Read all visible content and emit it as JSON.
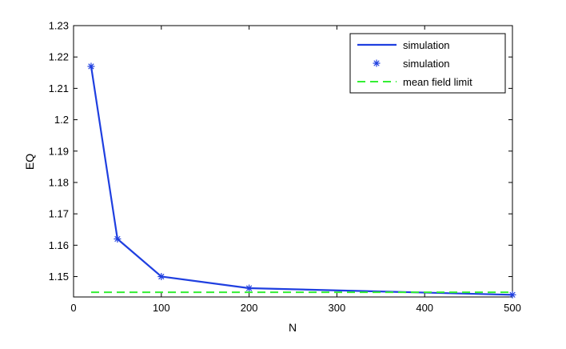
{
  "chart_data": {
    "type": "line",
    "xlabel": "N",
    "ylabel": "EQ",
    "xlim": [
      0,
      500
    ],
    "ylim": [
      1.1435,
      1.23
    ],
    "x_ticks": [
      0,
      100,
      200,
      300,
      400,
      500
    ],
    "y_ticks": [
      1.15,
      1.16,
      1.17,
      1.18,
      1.19,
      1.2,
      1.21,
      1.22,
      1.23
    ],
    "y_tick_labels": [
      "1.15",
      "1.16",
      "1.17",
      "1.18",
      "1.19",
      "1.2",
      "1.21",
      "1.22",
      "1.23"
    ],
    "grid": false,
    "legend_position": "top-right",
    "series": [
      {
        "name": "simulation",
        "style": "solid-line",
        "color": "#1f3fe0",
        "x": [
          20,
          50,
          100,
          200,
          500
        ],
        "y": [
          1.217,
          1.162,
          1.15,
          1.1463,
          1.1442
        ]
      },
      {
        "name": "simulation",
        "style": "star-markers",
        "color": "#1f3fe0",
        "x": [
          20,
          50,
          100,
          200,
          500
        ],
        "y": [
          1.217,
          1.162,
          1.15,
          1.1463,
          1.1442
        ]
      },
      {
        "name": "mean field limit",
        "style": "dashed-line",
        "color": "#33ee33",
        "x": [
          20,
          500
        ],
        "y": [
          1.145,
          1.145
        ]
      }
    ]
  }
}
